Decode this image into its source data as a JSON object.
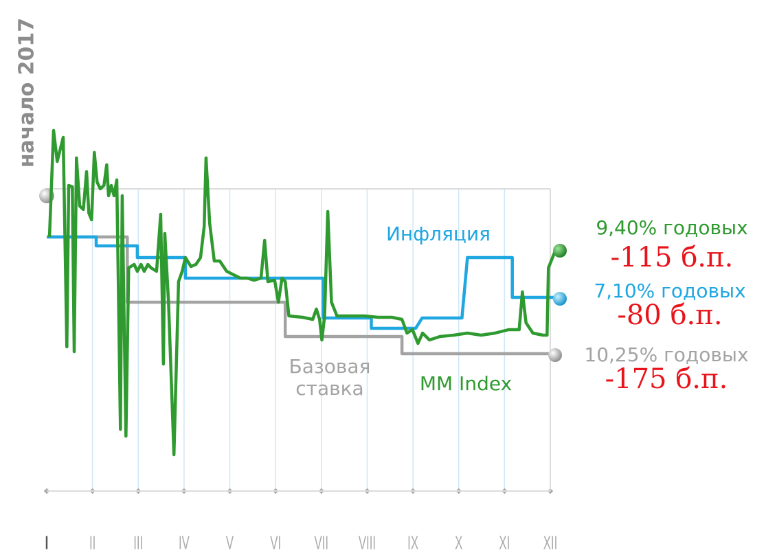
{
  "chart_data": {
    "type": "line",
    "start_label": "начало 2017",
    "categories": [
      "I",
      "II",
      "III",
      "IV",
      "V",
      "VI",
      "VII",
      "VIII",
      "IX",
      "X",
      "XI",
      "XII"
    ],
    "xlim": [
      0,
      11
    ],
    "ylim": [
      0,
      105
    ],
    "series": [
      {
        "name": "Базовая ставка",
        "color": "#a3a3a3",
        "end_label": "10,25% годовых",
        "change_label": "-175 б.п.",
        "x": [
          0,
          1.76,
          1.76,
          5.21,
          5.21,
          7.76,
          7.76,
          11.1
        ],
        "values": [
          74,
          74,
          55,
          55,
          45,
          45,
          40,
          40
        ]
      },
      {
        "name": "Инфляция",
        "color": "#1ea7e1",
        "end_label": "7,10% годовых",
        "change_label": "-80 б.п.",
        "x": [
          0,
          1.08,
          1.08,
          1.98,
          1.98,
          3.03,
          3.03,
          6.04,
          6.04,
          7.09,
          7.09,
          8.06,
          8.2,
          9.07,
          9.19,
          10.17,
          10.17,
          11.2
        ],
        "values": [
          74,
          74,
          71.4,
          71.4,
          68,
          68,
          62,
          62,
          50.4,
          50.4,
          47.4,
          47.4,
          50.4,
          50.4,
          68,
          68,
          56.4,
          56.4
        ]
      },
      {
        "name": "MM Index",
        "color": "#2f9a2f",
        "end_label": "9,40% годовых",
        "change_label": "-115 б.п.",
        "x": [
          0.06,
          0.15,
          0.23,
          0.36,
          0.44,
          0.48,
          0.56,
          0.6,
          0.65,
          0.72,
          0.8,
          0.87,
          0.92,
          0.98,
          1.04,
          1.1,
          1.17,
          1.25,
          1.31,
          1.35,
          1.41,
          1.47,
          1.53,
          1.61,
          1.65,
          1.73,
          1.79,
          1.91,
          1.98,
          2.06,
          2.13,
          2.21,
          2.28,
          2.4,
          2.49,
          2.55,
          2.58,
          2.66,
          2.78,
          2.88,
          2.96,
          3.03,
          3.15,
          3.26,
          3.36,
          3.44,
          3.48,
          3.56,
          3.66,
          3.78,
          3.93,
          4.08,
          4.23,
          4.38,
          4.53,
          4.68,
          4.76,
          4.83,
          4.98,
          5.06,
          5.14,
          5.21,
          5.29,
          5.59,
          5.81,
          5.89,
          5.96,
          6.01,
          6.07,
          6.14,
          6.22,
          6.34,
          6.64,
          6.94,
          7.24,
          7.54,
          7.76,
          7.87,
          7.99,
          8.11,
          8.21,
          8.36,
          8.59,
          8.89,
          9.19,
          9.49,
          9.79,
          10.09,
          10.32,
          10.39,
          10.47,
          10.62,
          10.84,
          10.93,
          10.96,
          11.11
        ],
        "values": [
          74,
          105,
          96,
          103,
          42,
          89,
          88.6,
          40.6,
          97,
          83,
          82,
          93,
          81,
          79,
          98.6,
          90,
          88,
          89,
          95,
          86,
          89,
          86,
          90.6,
          18,
          86,
          16,
          65,
          66,
          64,
          66,
          64,
          66,
          65,
          64,
          80.6,
          37,
          75,
          55,
          10.6,
          61,
          64,
          68,
          65.4,
          66,
          68,
          77,
          97,
          78,
          67,
          67,
          64,
          63,
          62,
          62,
          61.4,
          62,
          73,
          61,
          61.4,
          55,
          62,
          61,
          51,
          50.6,
          50,
          53,
          50,
          44,
          51,
          81.4,
          55,
          51,
          51,
          51,
          50.6,
          50.6,
          50,
          46,
          47,
          43,
          46,
          44,
          45,
          45.4,
          46,
          45.4,
          46,
          47,
          47,
          58,
          49,
          46,
          45.4,
          45.4,
          65,
          70
        ]
      }
    ]
  }
}
